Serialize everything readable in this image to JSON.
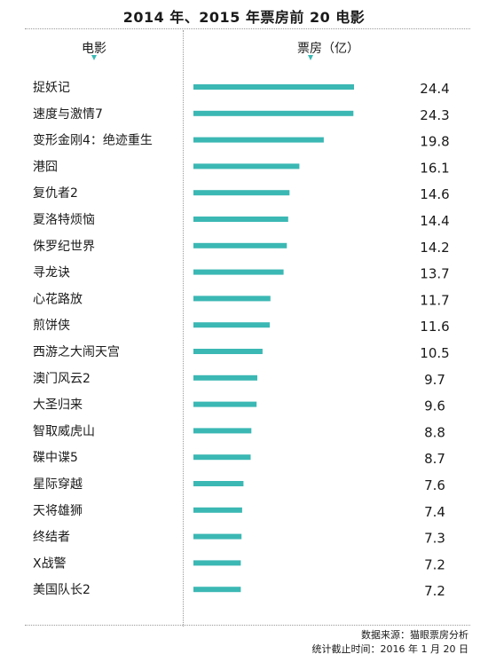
{
  "title": "2014 年、2015 年票房前 20 电影",
  "headers": {
    "movie": "电影",
    "box_office": "票房（亿）"
  },
  "footer": {
    "source": "数据来源：猫眼票房分析",
    "cutoff": "统计截止时间：2016 年 1 月 20 日"
  },
  "colors": {
    "bar": "#3bb8b4",
    "text": "#1a1a1a",
    "divider": "#9a9a9a"
  },
  "chart_data": {
    "type": "bar",
    "orientation": "horizontal",
    "title": "2014 年、2015 年票房前 20 电影",
    "xlabel": "票房（亿）",
    "ylabel": "电影",
    "categories": [
      "捉妖记",
      "速度与激情7",
      "变形金刚4：绝迹重生",
      "港囧",
      "复仇者2",
      "夏洛特烦恼",
      "侏罗纪世界",
      "寻龙诀",
      "心花路放",
      "煎饼侠",
      "西游之大闹天宫",
      "澳门风云2",
      "大圣归来",
      "智取威虎山",
      "碟中谍5",
      "星际穿越",
      "天将雄狮",
      "终结者",
      "X战警",
      "美国队长2"
    ],
    "values": [
      24.4,
      24.3,
      19.8,
      16.1,
      14.6,
      14.4,
      14.2,
      13.7,
      11.7,
      11.6,
      10.5,
      9.7,
      9.6,
      8.8,
      8.7,
      7.6,
      7.4,
      7.3,
      7.2,
      7.2
    ],
    "value_labels": [
      "24.4",
      "24.3",
      "19.8",
      "16.1",
      "14.6",
      "14.4",
      "14.2",
      "13.7",
      "11.7",
      "11.6",
      "10.5",
      "9.7",
      "9.6",
      "8.8",
      "8.7",
      "7.6",
      "7.4",
      "7.3",
      "7.2",
      "7.2"
    ],
    "grid": false
  }
}
